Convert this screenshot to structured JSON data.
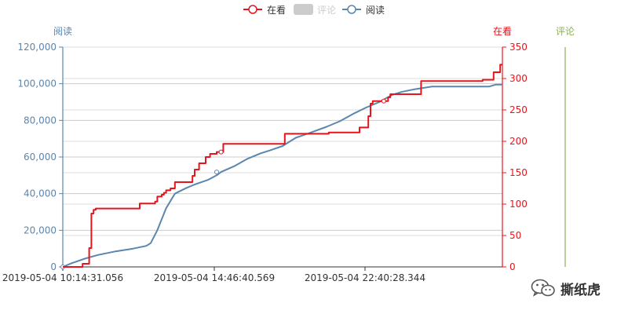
{
  "chart_data": {
    "type": "line",
    "legend": {
      "placement": "top-center",
      "items": [
        {
          "name": "在看",
          "color": "#e8141d",
          "selected": true
        },
        {
          "name": "评论",
          "color": "#cccccc",
          "selected": false
        },
        {
          "name": "阅读",
          "color": "#5b86ae",
          "selected": true
        }
      ]
    },
    "x_ticks": [
      "2019-05-04 10:14:31.056",
      "2019-05-04 14:46:40.569",
      "2019-05-04 22:40:28.344"
    ],
    "axes": {
      "left": {
        "label": "阅读",
        "color": "#5b86ae",
        "ylim": [
          0,
          120000
        ],
        "ticks": [
          "0",
          "20,000",
          "40,000",
          "60,000",
          "80,000",
          "100,000",
          "120,000"
        ]
      },
      "right1": {
        "label": "在看",
        "color": "#e8141d",
        "ylim": [
          0,
          350
        ],
        "ticks": [
          "0",
          "50",
          "100",
          "150",
          "200",
          "250",
          "300",
          "350"
        ]
      },
      "right2": {
        "label": "评论",
        "color": "#8fae5b"
      }
    },
    "grid": true,
    "series": [
      {
        "name": "阅读",
        "axis": "left",
        "color": "#5b86ae",
        "step": false,
        "points": [
          [
            0,
            0
          ],
          [
            0.02,
            2000
          ],
          [
            0.05,
            4500
          ],
          [
            0.08,
            6500
          ],
          [
            0.12,
            8500
          ],
          [
            0.16,
            10000
          ],
          [
            0.19,
            11500
          ],
          [
            0.2,
            13000
          ],
          [
            0.215,
            20000
          ],
          [
            0.235,
            32000
          ],
          [
            0.255,
            40000
          ],
          [
            0.28,
            43000
          ],
          [
            0.3,
            45000
          ],
          [
            0.33,
            47500
          ],
          [
            0.35,
            50000
          ],
          [
            0.36,
            51800
          ],
          [
            0.39,
            55000
          ],
          [
            0.42,
            59000
          ],
          [
            0.45,
            62000
          ],
          [
            0.47,
            63500
          ],
          [
            0.5,
            66000
          ],
          [
            0.53,
            70500
          ],
          [
            0.56,
            73000
          ],
          [
            0.6,
            76500
          ],
          [
            0.63,
            79500
          ],
          [
            0.66,
            83500
          ],
          [
            0.69,
            87000
          ],
          [
            0.72,
            90000
          ],
          [
            0.735,
            92000
          ],
          [
            0.75,
            94000
          ],
          [
            0.77,
            95500
          ],
          [
            0.8,
            97000
          ],
          [
            0.84,
            98500
          ],
          [
            0.9,
            98500
          ],
          [
            0.97,
            98500
          ],
          [
            0.985,
            99500
          ],
          [
            1,
            99500
          ]
        ],
        "markers": [
          [
            0.0,
            0
          ],
          [
            0.35,
            51800
          ]
        ]
      },
      {
        "name": "在看",
        "axis": "right1",
        "color": "#e8141d",
        "step": true,
        "points": [
          [
            0,
            0
          ],
          [
            0.03,
            0
          ],
          [
            0.045,
            5
          ],
          [
            0.06,
            30
          ],
          [
            0.065,
            85
          ],
          [
            0.07,
            91
          ],
          [
            0.075,
            93
          ],
          [
            0.17,
            93
          ],
          [
            0.175,
            101
          ],
          [
            0.205,
            101
          ],
          [
            0.21,
            104
          ],
          [
            0.215,
            112
          ],
          [
            0.22,
            112
          ],
          [
            0.225,
            115
          ],
          [
            0.23,
            118
          ],
          [
            0.235,
            122
          ],
          [
            0.245,
            125
          ],
          [
            0.25,
            125
          ],
          [
            0.255,
            135
          ],
          [
            0.29,
            135
          ],
          [
            0.295,
            145
          ],
          [
            0.3,
            155
          ],
          [
            0.305,
            155
          ],
          [
            0.31,
            165
          ],
          [
            0.32,
            165
          ],
          [
            0.325,
            175
          ],
          [
            0.33,
            175
          ],
          [
            0.335,
            180
          ],
          [
            0.345,
            180
          ],
          [
            0.35,
            183
          ],
          [
            0.36,
            183
          ],
          [
            0.365,
            196
          ],
          [
            0.5,
            196
          ],
          [
            0.505,
            212
          ],
          [
            0.6,
            212
          ],
          [
            0.605,
            214
          ],
          [
            0.67,
            214
          ],
          [
            0.675,
            222
          ],
          [
            0.69,
            222
          ],
          [
            0.695,
            240
          ],
          [
            0.7,
            260
          ],
          [
            0.705,
            264
          ],
          [
            0.735,
            264
          ],
          [
            0.74,
            270
          ],
          [
            0.745,
            275
          ],
          [
            0.81,
            275
          ],
          [
            0.815,
            296
          ],
          [
            0.95,
            296
          ],
          [
            0.955,
            298
          ],
          [
            0.975,
            298
          ],
          [
            0.98,
            310
          ],
          [
            0.99,
            310
          ],
          [
            0.995,
            322
          ],
          [
            1,
            322
          ]
        ],
        "markers": [
          [
            0.36,
            183
          ],
          [
            0.73,
            264
          ]
        ]
      }
    ]
  },
  "watermark": {
    "text": "撕纸虎",
    "icon": "wechat-icon"
  }
}
